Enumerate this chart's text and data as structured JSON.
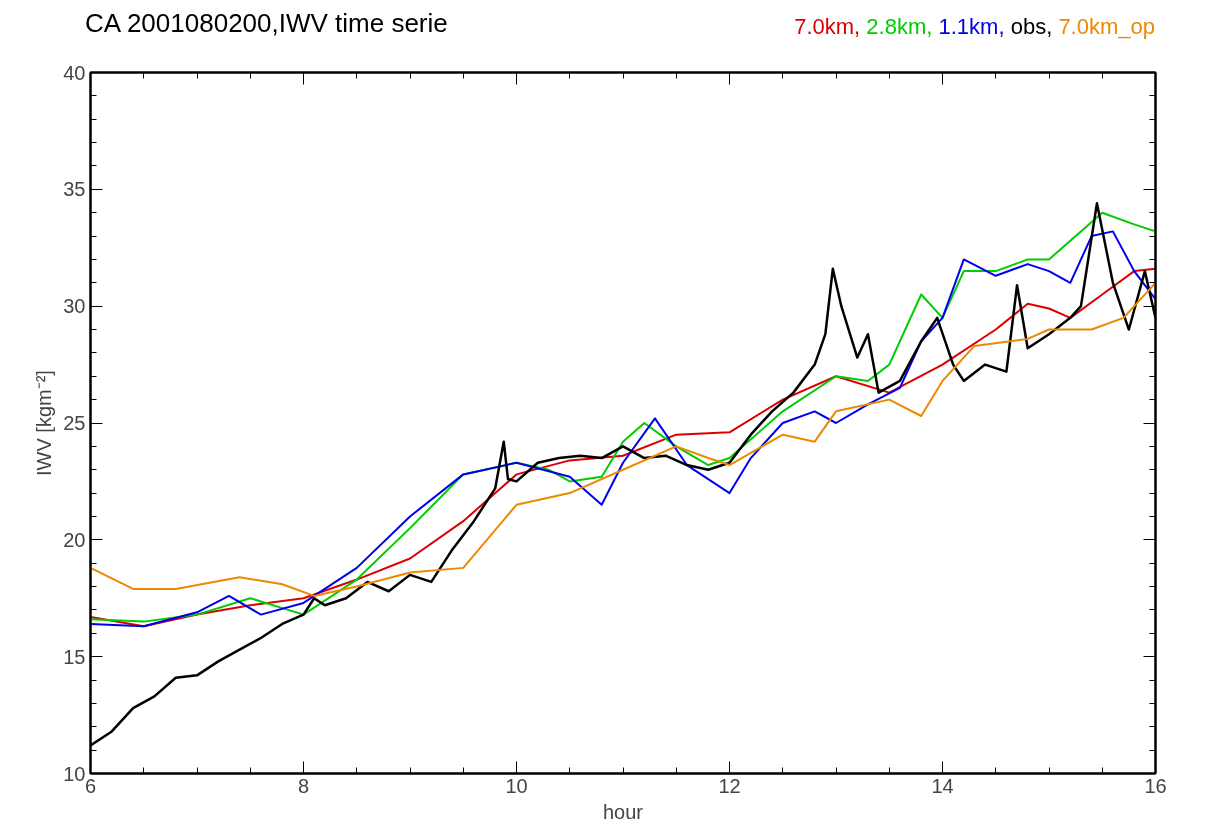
{
  "chart_data": {
    "type": "line",
    "title": "CA 2001080200,IWV time serie",
    "xlabel": "hour",
    "ylabel": "IWV [kgm⁻²]",
    "xlim": [
      6,
      16
    ],
    "xticks": [
      6,
      8,
      10,
      12,
      14,
      16
    ],
    "ylim": [
      10,
      40
    ],
    "yticks": [
      10,
      15,
      20,
      25,
      30,
      35,
      40
    ],
    "grid": false,
    "legend": "top right",
    "series": [
      {
        "name": "7.0km,",
        "color": "#dd0000",
        "x": [
          6,
          6.5,
          7,
          7.5,
          8,
          8.5,
          9,
          9.5,
          10,
          10.5,
          11,
          11.5,
          12,
          12.5,
          13,
          13.5,
          14,
          14.5,
          14.8,
          15,
          15.2,
          15.5,
          15.8,
          16
        ],
        "values": [
          16.7,
          16.3,
          16.8,
          17.2,
          17.5,
          18.3,
          19.2,
          20.8,
          22.8,
          23.4,
          23.6,
          24.5,
          24.6,
          26,
          27,
          26.3,
          27.5,
          29,
          30.1,
          29.9,
          29.5,
          30.5,
          31.5,
          31.6
        ]
      },
      {
        "name": "2.8km,",
        "color": "#00cc00",
        "x": [
          6,
          6.5,
          7,
          7.5,
          8,
          8.5,
          9,
          9.5,
          10,
          10.3,
          10.5,
          10.8,
          11,
          11.2,
          11.5,
          11.8,
          12,
          12.5,
          13,
          13.3,
          13.5,
          13.8,
          14,
          14.2,
          14.5,
          14.8,
          15,
          15.2,
          15.5,
          15.8,
          16
        ],
        "values": [
          16.6,
          16.5,
          16.8,
          17.5,
          16.8,
          18.3,
          20.5,
          22.8,
          23.3,
          23,
          22.5,
          22.7,
          24.2,
          25,
          24,
          23.2,
          23.5,
          25.5,
          27,
          26.8,
          27.5,
          30.5,
          29.5,
          31.5,
          31.5,
          32,
          32,
          32.8,
          34,
          33.5,
          33.2
        ]
      },
      {
        "name": "1.1km,",
        "color": "#0000ee",
        "x": [
          6,
          6.5,
          7,
          7.3,
          7.6,
          8,
          8.5,
          9,
          9.5,
          10,
          10.5,
          10.8,
          11,
          11.3,
          11.6,
          12,
          12.2,
          12.5,
          12.8,
          13,
          13.3,
          13.6,
          13.8,
          14,
          14.2,
          14.5,
          14.8,
          15,
          15.2,
          15.4,
          15.6,
          15.8,
          16
        ],
        "values": [
          16.4,
          16.3,
          16.9,
          17.6,
          16.8,
          17.3,
          18.8,
          21,
          22.8,
          23.3,
          22.7,
          21.5,
          23.3,
          25.2,
          23.2,
          22,
          23.5,
          25,
          25.5,
          25,
          25.8,
          26.5,
          28.5,
          29.5,
          32,
          31.3,
          31.8,
          31.5,
          31,
          33,
          33.2,
          31.5,
          30.3
        ]
      },
      {
        "name": "obs,",
        "color": "#000000",
        "x": [
          6,
          6.2,
          6.4,
          6.6,
          6.8,
          7,
          7.2,
          7.4,
          7.6,
          7.8,
          8,
          8.1,
          8.2,
          8.4,
          8.6,
          8.8,
          9,
          9.2,
          9.4,
          9.6,
          9.8,
          9.88,
          9.92,
          10,
          10.2,
          10.4,
          10.6,
          10.8,
          11,
          11.2,
          11.4,
          11.6,
          11.8,
          12,
          12.2,
          12.4,
          12.6,
          12.8,
          12.9,
          12.97,
          13.05,
          13.2,
          13.3,
          13.4,
          13.6,
          13.8,
          13.95,
          14.1,
          14.2,
          14.4,
          14.6,
          14.7,
          14.8,
          15,
          15.2,
          15.3,
          15.45,
          15.6,
          15.75,
          15.9,
          16
        ],
        "values": [
          11.2,
          11.8,
          12.8,
          13.3,
          14.1,
          14.2,
          14.8,
          15.3,
          15.8,
          16.4,
          16.8,
          17.5,
          17.2,
          17.5,
          18.2,
          17.8,
          18.5,
          18.2,
          19.6,
          20.8,
          22.2,
          24.2,
          22.6,
          22.5,
          23.3,
          23.5,
          23.6,
          23.5,
          24,
          23.5,
          23.6,
          23.2,
          23,
          23.3,
          24.5,
          25.5,
          26.3,
          27.5,
          28.8,
          31.6,
          30,
          27.8,
          28.8,
          26.3,
          26.8,
          28.5,
          29.5,
          27.5,
          26.8,
          27.5,
          27.2,
          30.9,
          28.2,
          28.8,
          29.5,
          30,
          34.4,
          31,
          29,
          31.5,
          29.5
        ]
      },
      {
        "name": "7.0km_op",
        "color": "#ee8800",
        "x": [
          6,
          6.4,
          6.8,
          7.4,
          7.8,
          8.1,
          8.5,
          9,
          9.5,
          10,
          10.5,
          11,
          11.5,
          11.8,
          12,
          12.5,
          12.8,
          13,
          13.5,
          13.8,
          14,
          14.3,
          14.8,
          15,
          15.4,
          15.7,
          16
        ],
        "values": [
          18.8,
          17.9,
          17.9,
          18.4,
          18.1,
          17.6,
          18,
          18.6,
          18.8,
          21.5,
          22,
          23,
          24,
          23.5,
          23.2,
          24.5,
          24.2,
          25.5,
          26,
          25.3,
          26.8,
          28.3,
          28.6,
          29,
          29,
          29.5,
          31
        ]
      }
    ]
  }
}
